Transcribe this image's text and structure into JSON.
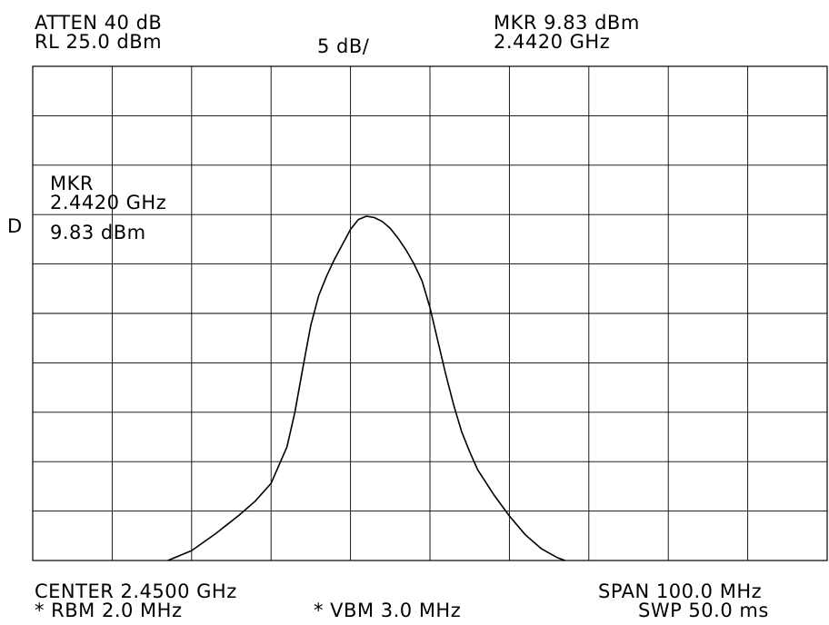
{
  "header": {
    "atten": "ATTEN 40 dB",
    "ref_level": "RL 25.0 dBm",
    "scale": "5 dB/",
    "marker_level": "MKR 9.83 dBm",
    "marker_freq": "2.4420 GHz"
  },
  "side_marker": "D",
  "marker_box": {
    "title": "MKR",
    "freq": "2.4420 GHz",
    "level": "9.83 dBm"
  },
  "footer": {
    "center": "CENTER 2.4500 GHz",
    "rbw": "* RBM 2.0 MHz",
    "vbw": "* VBM 3.0 MHz",
    "span": "SPAN 100.0 MHz",
    "sweep": "SWP 50.0 ms"
  },
  "chart_data": {
    "type": "line",
    "title": "",
    "xlabel": "",
    "ylabel": "",
    "xlim": [
      2400,
      2500
    ],
    "ylim": [
      -25,
      25
    ],
    "x_divisions": 10,
    "y_divisions": 10,
    "grid": true,
    "x_unit": "MHz",
    "y_unit": "dBm",
    "series": [
      {
        "color": "#000000",
        "x": [
          2417.0,
          2420.0,
          2423.0,
          2426.0,
          2428.0,
          2430.0,
          2432.0,
          2433.0,
          2434.0,
          2435.0,
          2436.0,
          2437.0,
          2438.0,
          2439.0,
          2440.0,
          2441.0,
          2442.0,
          2443.0,
          2444.0,
          2445.0,
          2446.0,
          2447.0,
          2448.0,
          2449.0,
          2450.0,
          2451.0,
          2452.0,
          2453.0,
          2454.0,
          2455.0,
          2456.0,
          2458.0,
          2460.0,
          2462.0,
          2464.0,
          2466.0,
          2467.0
        ],
        "y": [
          -25.0,
          -24.0,
          -22.3,
          -20.4,
          -19.0,
          -17.2,
          -13.5,
          -10.0,
          -5.5,
          -1.2,
          1.8,
          3.8,
          5.5,
          7.0,
          8.5,
          9.5,
          9.83,
          9.7,
          9.3,
          8.6,
          7.6,
          6.4,
          5.0,
          3.3,
          0.6,
          -2.8,
          -6.2,
          -9.3,
          -12.0,
          -14.0,
          -15.8,
          -18.3,
          -20.5,
          -22.4,
          -23.8,
          -24.7,
          -25.0
        ]
      }
    ]
  }
}
